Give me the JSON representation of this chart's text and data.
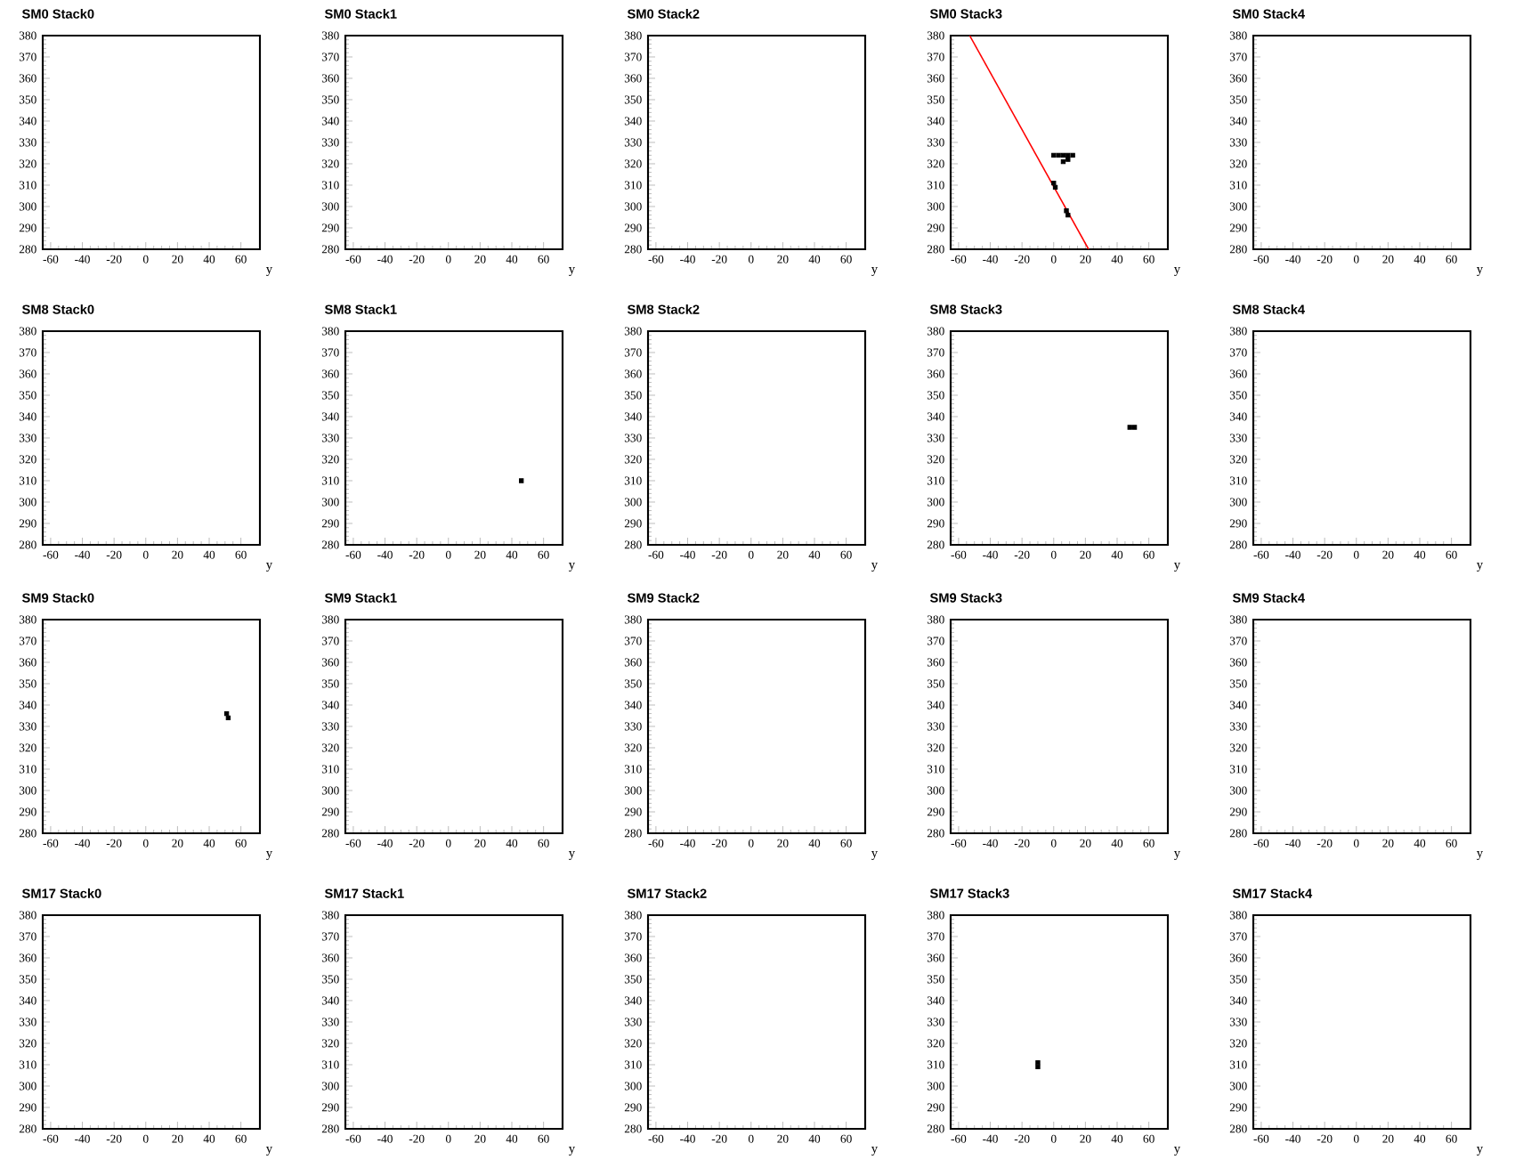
{
  "chart_data": [
    {
      "type": "scatter",
      "title": "SM0 Stack0",
      "xlabel": "y",
      "xlim": [
        -65,
        72
      ],
      "ylim": [
        280,
        380
      ],
      "xticks": [
        -60,
        -40,
        -20,
        0,
        20,
        40,
        60
      ],
      "yticks": [
        280,
        290,
        300,
        310,
        320,
        330,
        340,
        350,
        360,
        370,
        380
      ],
      "marker": "square"
    },
    {
      "type": "scatter",
      "title": "SM0 Stack1",
      "xlabel": "y",
      "xlim": [
        -65,
        72
      ],
      "ylim": [
        280,
        380
      ],
      "xticks": [
        -60,
        -40,
        -20,
        0,
        20,
        40,
        60
      ],
      "yticks": [
        280,
        290,
        300,
        310,
        320,
        330,
        340,
        350,
        360,
        370,
        380
      ],
      "marker": "square"
    },
    {
      "type": "scatter",
      "title": "SM0 Stack2",
      "xlabel": "y",
      "xlim": [
        -65,
        72
      ],
      "ylim": [
        280,
        380
      ],
      "xticks": [
        -60,
        -40,
        -20,
        0,
        20,
        40,
        60
      ],
      "yticks": [
        280,
        290,
        300,
        310,
        320,
        330,
        340,
        350,
        360,
        370,
        380
      ],
      "marker": "square"
    },
    {
      "type": "scatter",
      "title": "SM0 Stack3",
      "xlabel": "y",
      "xlim": [
        -65,
        72
      ],
      "ylim": [
        280,
        380
      ],
      "xticks": [
        -60,
        -40,
        -20,
        0,
        20,
        40,
        60
      ],
      "yticks": [
        280,
        290,
        300,
        310,
        320,
        330,
        340,
        350,
        360,
        370,
        380
      ],
      "marker": "square",
      "series": [
        {
          "color": "#000000",
          "x": [
            0,
            3,
            6,
            9,
            12,
            6,
            9,
            0,
            1,
            8,
            9
          ],
          "values": [
            324,
            324,
            324,
            324,
            324,
            321,
            322,
            311,
            309,
            298,
            296
          ]
        },
        {
          "type": "line",
          "marker": "none",
          "color": "#ff0000",
          "x": [
            -53,
            22
          ],
          "values": [
            380,
            280
          ]
        }
      ]
    },
    {
      "type": "scatter",
      "title": "SM0 Stack4",
      "xlabel": "y",
      "xlim": [
        -65,
        72
      ],
      "ylim": [
        280,
        380
      ],
      "xticks": [
        -60,
        -40,
        -20,
        0,
        20,
        40,
        60
      ],
      "yticks": [
        280,
        290,
        300,
        310,
        320,
        330,
        340,
        350,
        360,
        370,
        380
      ],
      "marker": "square"
    },
    {
      "type": "scatter",
      "title": "SM8 Stack0",
      "xlabel": "y",
      "xlim": [
        -65,
        72
      ],
      "ylim": [
        280,
        380
      ],
      "xticks": [
        -60,
        -40,
        -20,
        0,
        20,
        40,
        60
      ],
      "yticks": [
        280,
        290,
        300,
        310,
        320,
        330,
        340,
        350,
        360,
        370,
        380
      ],
      "marker": "square"
    },
    {
      "type": "scatter",
      "title": "SM8 Stack1",
      "xlabel": "y",
      "xlim": [
        -65,
        72
      ],
      "ylim": [
        280,
        380
      ],
      "xticks": [
        -60,
        -40,
        -20,
        0,
        20,
        40,
        60
      ],
      "yticks": [
        280,
        290,
        300,
        310,
        320,
        330,
        340,
        350,
        360,
        370,
        380
      ],
      "marker": "square",
      "series": [
        {
          "color": "#000000",
          "x": [
            46
          ],
          "values": [
            310
          ]
        }
      ]
    },
    {
      "type": "scatter",
      "title": "SM8 Stack2",
      "xlabel": "y",
      "xlim": [
        -65,
        72
      ],
      "ylim": [
        280,
        380
      ],
      "xticks": [
        -60,
        -40,
        -20,
        0,
        20,
        40,
        60
      ],
      "yticks": [
        280,
        290,
        300,
        310,
        320,
        330,
        340,
        350,
        360,
        370,
        380
      ],
      "marker": "square"
    },
    {
      "type": "scatter",
      "title": "SM8 Stack3",
      "xlabel": "y",
      "xlim": [
        -65,
        72
      ],
      "ylim": [
        280,
        380
      ],
      "xticks": [
        -60,
        -40,
        -20,
        0,
        20,
        40,
        60
      ],
      "yticks": [
        280,
        290,
        300,
        310,
        320,
        330,
        340,
        350,
        360,
        370,
        380
      ],
      "marker": "square",
      "series": [
        {
          "color": "#000000",
          "x": [
            48,
            51
          ],
          "values": [
            335,
            335
          ]
        }
      ]
    },
    {
      "type": "scatter",
      "title": "SM8 Stack4",
      "xlabel": "y",
      "xlim": [
        -65,
        72
      ],
      "ylim": [
        280,
        380
      ],
      "xticks": [
        -60,
        -40,
        -20,
        0,
        20,
        40,
        60
      ],
      "yticks": [
        280,
        290,
        300,
        310,
        320,
        330,
        340,
        350,
        360,
        370,
        380
      ],
      "marker": "square"
    },
    {
      "type": "scatter",
      "title": "SM9 Stack0",
      "xlabel": "y",
      "xlim": [
        -65,
        72
      ],
      "ylim": [
        280,
        380
      ],
      "xticks": [
        -60,
        -40,
        -20,
        0,
        20,
        40,
        60
      ],
      "yticks": [
        280,
        290,
        300,
        310,
        320,
        330,
        340,
        350,
        360,
        370,
        380
      ],
      "marker": "square",
      "series": [
        {
          "color": "#000000",
          "x": [
            51,
            52
          ],
          "values": [
            336,
            334
          ]
        }
      ]
    },
    {
      "type": "scatter",
      "title": "SM9 Stack1",
      "xlabel": "y",
      "xlim": [
        -65,
        72
      ],
      "ylim": [
        280,
        380
      ],
      "xticks": [
        -60,
        -40,
        -20,
        0,
        20,
        40,
        60
      ],
      "yticks": [
        280,
        290,
        300,
        310,
        320,
        330,
        340,
        350,
        360,
        370,
        380
      ],
      "marker": "square"
    },
    {
      "type": "scatter",
      "title": "SM9 Stack2",
      "xlabel": "y",
      "xlim": [
        -65,
        72
      ],
      "ylim": [
        280,
        380
      ],
      "xticks": [
        -60,
        -40,
        -20,
        0,
        20,
        40,
        60
      ],
      "yticks": [
        280,
        290,
        300,
        310,
        320,
        330,
        340,
        350,
        360,
        370,
        380
      ],
      "marker": "square"
    },
    {
      "type": "scatter",
      "title": "SM9 Stack3",
      "xlabel": "y",
      "xlim": [
        -65,
        72
      ],
      "ylim": [
        280,
        380
      ],
      "xticks": [
        -60,
        -40,
        -20,
        0,
        20,
        40,
        60
      ],
      "yticks": [
        280,
        290,
        300,
        310,
        320,
        330,
        340,
        350,
        360,
        370,
        380
      ],
      "marker": "square"
    },
    {
      "type": "scatter",
      "title": "SM9 Stack4",
      "xlabel": "y",
      "xlim": [
        -65,
        72
      ],
      "ylim": [
        280,
        380
      ],
      "xticks": [
        -60,
        -40,
        -20,
        0,
        20,
        40,
        60
      ],
      "yticks": [
        280,
        290,
        300,
        310,
        320,
        330,
        340,
        350,
        360,
        370,
        380
      ],
      "marker": "square"
    },
    {
      "type": "scatter",
      "title": "SM17 Stack0",
      "xlabel": "y",
      "xlim": [
        -65,
        72
      ],
      "ylim": [
        280,
        380
      ],
      "xticks": [
        -60,
        -40,
        -20,
        0,
        20,
        40,
        60
      ],
      "yticks": [
        280,
        290,
        300,
        310,
        320,
        330,
        340,
        350,
        360,
        370,
        380
      ],
      "marker": "square"
    },
    {
      "type": "scatter",
      "title": "SM17 Stack1",
      "xlabel": "y",
      "xlim": [
        -65,
        72
      ],
      "ylim": [
        280,
        380
      ],
      "xticks": [
        -60,
        -40,
        -20,
        0,
        20,
        40,
        60
      ],
      "yticks": [
        280,
        290,
        300,
        310,
        320,
        330,
        340,
        350,
        360,
        370,
        380
      ],
      "marker": "square"
    },
    {
      "type": "scatter",
      "title": "SM17 Stack2",
      "xlabel": "y",
      "xlim": [
        -65,
        72
      ],
      "ylim": [
        280,
        380
      ],
      "xticks": [
        -60,
        -40,
        -20,
        0,
        20,
        40,
        60
      ],
      "yticks": [
        280,
        290,
        300,
        310,
        320,
        330,
        340,
        350,
        360,
        370,
        380
      ],
      "marker": "square"
    },
    {
      "type": "scatter",
      "title": "SM17 Stack3",
      "xlabel": "y",
      "xlim": [
        -65,
        72
      ],
      "ylim": [
        280,
        380
      ],
      "xticks": [
        -60,
        -40,
        -20,
        0,
        20,
        40,
        60
      ],
      "yticks": [
        280,
        290,
        300,
        310,
        320,
        330,
        340,
        350,
        360,
        370,
        380
      ],
      "marker": "square",
      "series": [
        {
          "color": "#000000",
          "x": [
            -10,
            -10
          ],
          "values": [
            311,
            309
          ]
        }
      ]
    },
    {
      "type": "scatter",
      "title": "SM17 Stack4",
      "xlabel": "y",
      "xlim": [
        -65,
        72
      ],
      "ylim": [
        280,
        380
      ],
      "xticks": [
        -60,
        -40,
        -20,
        0,
        20,
        40,
        60
      ],
      "yticks": [
        280,
        290,
        300,
        310,
        320,
        330,
        340,
        350,
        360,
        370,
        380
      ],
      "marker": "square"
    }
  ]
}
